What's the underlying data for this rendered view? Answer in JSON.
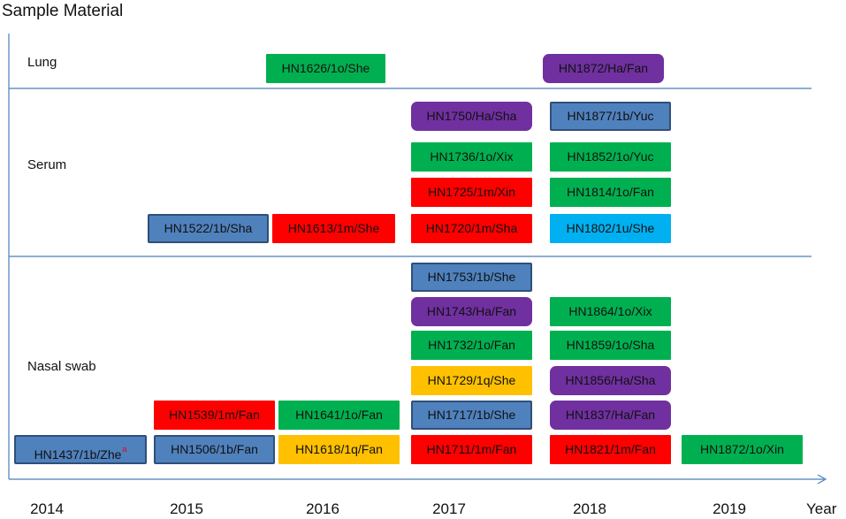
{
  "title": "Sample Material",
  "year_word": "Year",
  "categories": [
    "Lung",
    "Serum",
    "Nasal swab"
  ],
  "years": [
    "2014",
    "2015",
    "2016",
    "2017",
    "2018",
    "2019"
  ],
  "colors": {
    "green": "#00b050",
    "red": "#ff0000",
    "purple": "#7030a0",
    "blue": "#4f81bd",
    "orange": "#ffc000",
    "cyan": "#00b0f0",
    "line": "#4a7ebb"
  },
  "boxes": [
    {
      "label": "HN1626/1o/She",
      "category": "Lung",
      "year": "2016",
      "color": "green"
    },
    {
      "label": "HN1872/Ha/Fan",
      "category": "Lung",
      "year": "2018",
      "color": "purple"
    },
    {
      "label": "HN1750/Ha/Sha",
      "category": "Serum",
      "year": "2017",
      "color": "purple"
    },
    {
      "label": "HN1736/1o/Xix",
      "category": "Serum",
      "year": "2017",
      "color": "green"
    },
    {
      "label": "HN1725/1m/Xin",
      "category": "Serum",
      "year": "2017",
      "color": "red"
    },
    {
      "label": "HN1720/1m/Sha",
      "category": "Serum",
      "year": "2017",
      "color": "red"
    },
    {
      "label": "HN1877/1b/Yuc",
      "category": "Serum",
      "year": "2018",
      "color": "blue"
    },
    {
      "label": "HN1852/1o/Yuc",
      "category": "Serum",
      "year": "2018",
      "color": "green"
    },
    {
      "label": "HN1814/1o/Fan",
      "category": "Serum",
      "year": "2018",
      "color": "green"
    },
    {
      "label": "HN1802/1u/She",
      "category": "Serum",
      "year": "2018",
      "color": "cyan"
    },
    {
      "label": "HN1522/1b/Sha",
      "category": "Serum",
      "year": "2015",
      "color": "blue"
    },
    {
      "label": "HN1613/1m/She",
      "category": "Serum",
      "year": "2016",
      "color": "red"
    },
    {
      "label": "HN1753/1b/She",
      "category": "Nasal swab",
      "year": "2017",
      "color": "blue"
    },
    {
      "label": "HN1743/Ha/Fan",
      "category": "Nasal swab",
      "year": "2017",
      "color": "purple"
    },
    {
      "label": "HN1732/1o/Fan",
      "category": "Nasal swab",
      "year": "2017",
      "color": "green"
    },
    {
      "label": "HN1729/1q/She",
      "category": "Nasal swab",
      "year": "2017",
      "color": "orange"
    },
    {
      "label": "HN1717/1b/She",
      "category": "Nasal swab",
      "year": "2017",
      "color": "blue"
    },
    {
      "label": "HN1711/1m/Fan",
      "category": "Nasal swab",
      "year": "2017",
      "color": "red"
    },
    {
      "label": "HN1864/1o/Xix",
      "category": "Nasal swab",
      "year": "2018",
      "color": "green"
    },
    {
      "label": "HN1859/1o/Sha",
      "category": "Nasal swab",
      "year": "2018",
      "color": "green"
    },
    {
      "label": "HN1856/Ha/Sha",
      "category": "Nasal swab",
      "year": "2018",
      "color": "purple"
    },
    {
      "label": "HN1837/Ha/Fan",
      "category": "Nasal swab",
      "year": "2018",
      "color": "purple"
    },
    {
      "label": "HN1821/1m/Fan",
      "category": "Nasal swab",
      "year": "2018",
      "color": "red"
    },
    {
      "label": "HN1539/1m/Fan",
      "category": "Nasal swab",
      "year": "2015",
      "color": "red"
    },
    {
      "label": "HN1506/1b/Fan",
      "category": "Nasal swab",
      "year": "2015",
      "color": "blue"
    },
    {
      "label": "HN1641/1o/Fan",
      "category": "Nasal swab",
      "year": "2016",
      "color": "green"
    },
    {
      "label": "HN1618/1q/Fan",
      "category": "Nasal swab",
      "year": "2016",
      "color": "orange"
    },
    {
      "label": "HN1437/1b/Zhe",
      "category": "Nasal swab",
      "year": "2014",
      "color": "blue",
      "superscript": "a"
    },
    {
      "label": "HN1872/1o/Xin",
      "category": "Nasal swab",
      "year": "2019",
      "color": "green"
    }
  ]
}
